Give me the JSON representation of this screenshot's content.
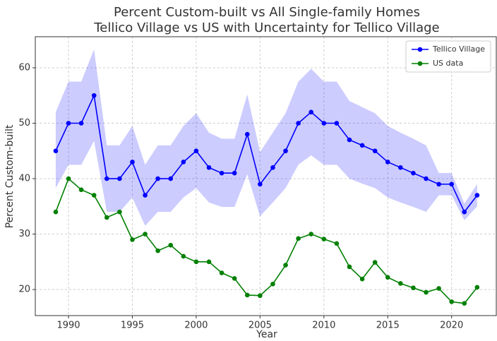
{
  "chart_data": {
    "type": "line",
    "title": "Percent Custom-built vs All Single-family Homes",
    "subtitle": "Tellico Village vs US with Uncertainty for Tellico Village",
    "x_label": "Year",
    "y_label": "Percent Custom-built",
    "x": [
      1989,
      1990,
      1991,
      1992,
      1993,
      1994,
      1995,
      1996,
      1997,
      1998,
      1999,
      2000,
      2001,
      2002,
      2003,
      2004,
      2005,
      2006,
      2007,
      2008,
      2009,
      2010,
      2011,
      2012,
      2013,
      2014,
      2015,
      2016,
      2017,
      2018,
      2019,
      2020,
      2021,
      2022
    ],
    "series": [
      {
        "name": "Tellico Village",
        "color": "#0000ff",
        "band_color": "#0000ff",
        "values": [
          45,
          50,
          50,
          55,
          40,
          40,
          43,
          37,
          40,
          40,
          43,
          45,
          42,
          41,
          41,
          48,
          39,
          42,
          45,
          50,
          52,
          50,
          50,
          47,
          46,
          45,
          43,
          42,
          41,
          40,
          39,
          39,
          34,
          37
        ],
        "upper": [
          52,
          57.5,
          57.5,
          63.3,
          46,
          46,
          49.5,
          42.5,
          46,
          46,
          49.5,
          51.8,
          48.3,
          47.2,
          47.2,
          55.2,
          44.8,
          48.3,
          51.8,
          57.5,
          59.8,
          57.5,
          57.5,
          54,
          52.9,
          51.8,
          49.5,
          48.3,
          47.2,
          46,
          41,
          41,
          35.5,
          39
        ],
        "lower": [
          38.3,
          42.5,
          42.5,
          46.8,
          34,
          34,
          36.6,
          31.5,
          34,
          34,
          36.6,
          38.3,
          35.7,
          34.9,
          34.9,
          40.8,
          33.2,
          35.7,
          38.3,
          42.5,
          44.2,
          42.5,
          42.5,
          40,
          39.1,
          38.3,
          36.6,
          35.7,
          34.9,
          34,
          37,
          37,
          32.5,
          35
        ]
      },
      {
        "name": "US data",
        "color": "#008000",
        "values": [
          34,
          40,
          38,
          37,
          33,
          34,
          29,
          30,
          27,
          28,
          26,
          25,
          25,
          23,
          22,
          19,
          18.9,
          21,
          24.4,
          29.2,
          30,
          29.1,
          28.3,
          24.1,
          21.9,
          24.9,
          22.2,
          21.1,
          20.3,
          19.5,
          20.2,
          17.8,
          17.5,
          20.4
        ]
      }
    ],
    "xlim": [
      1987.4,
      2023.5
    ],
    "xticks": [
      1990,
      1995,
      2000,
      2005,
      2010,
      2015,
      2020
    ],
    "ylim": [
      15.3,
      65.6
    ],
    "yticks": [
      20,
      30,
      40,
      50,
      60
    ],
    "grid": true,
    "legend": "upper right"
  }
}
